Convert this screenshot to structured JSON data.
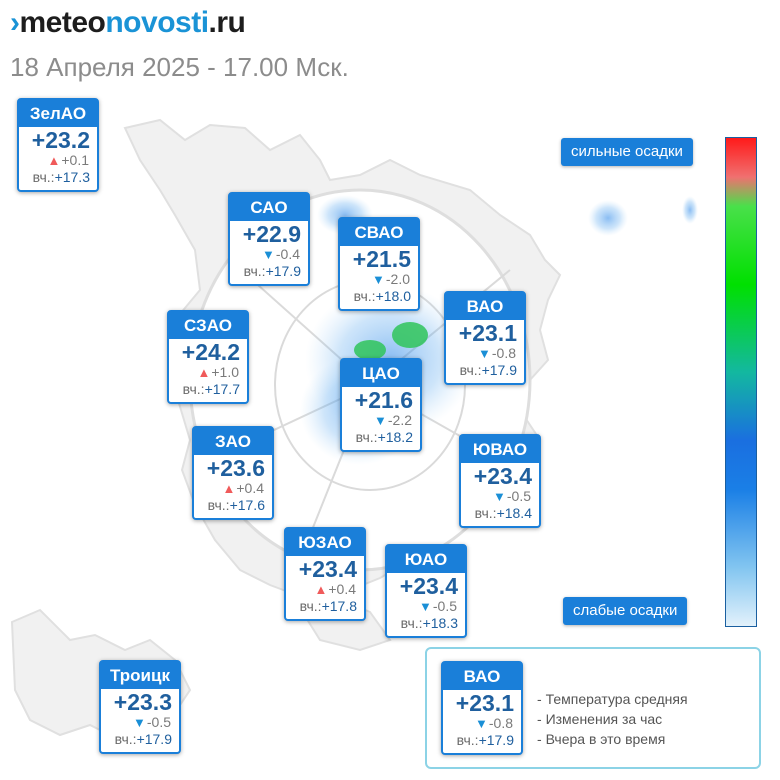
{
  "header": {
    "logo_mark": "›",
    "logo_a": "meteo",
    "logo_b": "novosti",
    "logo_c": ".ru",
    "datetime": "18 Апреля 2025 - 17.00 Мск."
  },
  "districts": [
    {
      "name": "ЗелАО",
      "temp": "+23.2",
      "trend": "up",
      "change": "+0.1",
      "yesterday_label": "вч.:",
      "yesterday": "+17.3"
    },
    {
      "name": "САО",
      "temp": "+22.9",
      "trend": "down",
      "change": "-0.4",
      "yesterday_label": "вч.:",
      "yesterday": "+17.9"
    },
    {
      "name": "СВАО",
      "temp": "+21.5",
      "trend": "down",
      "change": "-2.0",
      "yesterday_label": "вч.:",
      "yesterday": "+18.0"
    },
    {
      "name": "ВАО",
      "temp": "+23.1",
      "trend": "down",
      "change": "-0.8",
      "yesterday_label": "вч.:",
      "yesterday": "+17.9"
    },
    {
      "name": "СЗАО",
      "temp": "+24.2",
      "trend": "up",
      "change": "+1.0",
      "yesterday_label": "вч.:",
      "yesterday": "+17.7"
    },
    {
      "name": "ЦАО",
      "temp": "+21.6",
      "trend": "down",
      "change": "-2.2",
      "yesterday_label": "вч.:",
      "yesterday": "+18.2"
    },
    {
      "name": "ЗАО",
      "temp": "+23.6",
      "trend": "up",
      "change": "+0.4",
      "yesterday_label": "вч.:",
      "yesterday": "+17.6"
    },
    {
      "name": "ЮВАО",
      "temp": "+23.4",
      "trend": "down",
      "change": "-0.5",
      "yesterday_label": "вч.:",
      "yesterday": "+18.4"
    },
    {
      "name": "ЮЗАО",
      "temp": "+23.4",
      "trend": "up",
      "change": "+0.4",
      "yesterday_label": "вч.:",
      "yesterday": "+17.8"
    },
    {
      "name": "ЮАО",
      "temp": "+23.4",
      "trend": "down",
      "change": "-0.5",
      "yesterday_label": "вч.:",
      "yesterday": "+18.3"
    },
    {
      "name": "Троицк",
      "temp": "+23.3",
      "trend": "down",
      "change": "-0.5",
      "yesterday_label": "вч.:",
      "yesterday": "+17.9"
    }
  ],
  "precip_scale": {
    "high_label": "сильные осадки",
    "low_label": "слабые осадки"
  },
  "legend": {
    "card": {
      "name": "ВАО",
      "temp": "+23.1",
      "trend": "down",
      "change": "-0.8",
      "yesterday_label": "вч.:",
      "yesterday": "+17.9"
    },
    "line1": "Температура средняя",
    "line2": "Изменения за час",
    "line3": "Вчера в это время"
  },
  "colors": {
    "accent": "#1a7fd9",
    "trend_up": "#f05a5a",
    "trend_down": "#1a8fd6"
  }
}
